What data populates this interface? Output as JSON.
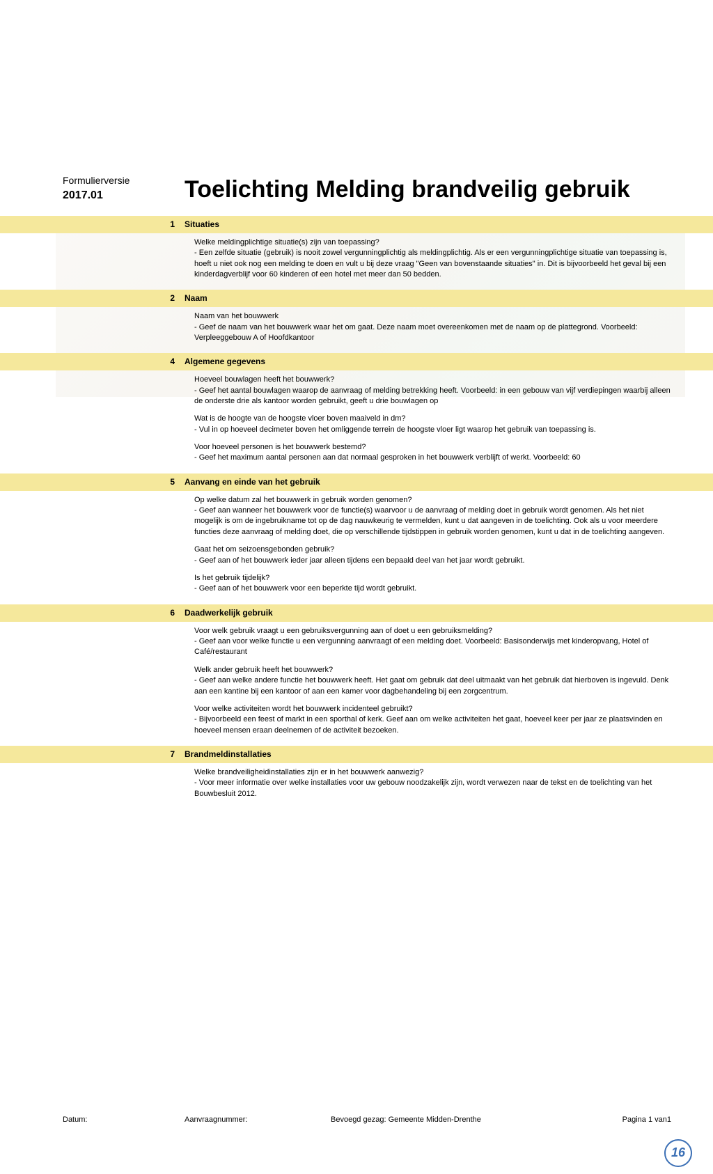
{
  "form_version_label": "Formulierversie",
  "form_version_num": "2017.01",
  "main_title": "Toelichting Melding brandveilig gebruik",
  "sections": [
    {
      "num": "1",
      "title": "Situaties",
      "blocks": [
        "Welke meldingplichtige situatie(s) zijn van toepassing?\n- Een zelfde situatie (gebruik) is nooit zowel vergunningplichtig als meldingplichtig. Als er een vergunningplichtige situatie van toepassing is, hoeft u niet ook nog een melding te doen en vult u bij deze vraag \"Geen van bovenstaande situaties\" in. Dit is bijvoorbeeld het geval bij een kinderdagverblijf voor 60 kinderen of een hotel met meer dan 50 bedden."
      ]
    },
    {
      "num": "2",
      "title": "Naam",
      "blocks": [
        "Naam van het bouwwerk\n- Geef de naam van het bouwwerk waar het om gaat. Deze naam moet overeenkomen met de naam op de plattegrond. Voorbeeld: Verpleeggebouw A of Hoofdkantoor"
      ]
    },
    {
      "num": "4",
      "title": "Algemene gegevens",
      "blocks": [
        "Hoeveel bouwlagen heeft het bouwwerk?\n- Geef het aantal bouwlagen waarop de aanvraag of melding betrekking heeft. Voorbeeld: in een gebouw van vijf verdiepingen waarbij alleen de onderste drie als kantoor worden gebruikt, geeft u drie bouwlagen op",
        "Wat is de hoogte van de hoogste vloer boven maaiveld in dm?\n- Vul in op hoeveel decimeter boven het omliggende terrein de hoogste vloer ligt waarop het gebruik van toepassing is.",
        "Voor hoeveel personen is het bouwwerk bestemd?\n- Geef het maximum aantal personen aan dat normaal gesproken in het bouwwerk verblijft of werkt. Voorbeeld: 60"
      ]
    },
    {
      "num": "5",
      "title": "Aanvang en einde van het gebruik",
      "blocks": [
        "Op welke datum zal het bouwwerk in gebruik worden genomen?\n- Geef aan wanneer het bouwwerk voor de functie(s) waarvoor u de aanvraag of melding doet in gebruik wordt genomen. Als het niet mogelijk is om de ingebruikname tot op de dag nauwkeurig te vermelden, kunt u dat aangeven in de toelichting. Ook als u voor meerdere functies deze aanvraag of melding doet, die op verschillende tijdstippen in gebruik worden genomen, kunt u dat in de toelichting aangeven.",
        "Gaat het om seizoensgebonden gebruik?\n- Geef aan of het bouwwerk ieder jaar alleen tijdens een bepaald deel van het jaar wordt gebruikt.",
        "Is het gebruik tijdelijk?\n- Geef aan of het bouwwerk voor een beperkte tijd wordt gebruikt."
      ]
    },
    {
      "num": "6",
      "title": "Daadwerkelijk gebruik",
      "blocks": [
        "Voor welk gebruik vraagt u een gebruiksvergunning aan of doet u een gebruiksmelding?\n- Geef aan voor welke functie u een vergunning aanvraagt of een melding doet. Voorbeeld: Basisonderwijs met kinderopvang, Hotel of Café/restaurant",
        "Welk ander gebruik heeft het bouwwerk?\n- Geef aan welke andere functie het bouwwerk heeft. Het gaat om gebruik dat deel uitmaakt van het gebruik dat hierboven is ingevuld. Denk aan een kantine bij een kantoor of aan een kamer voor dagbehandeling bij een zorgcentrum.",
        "Voor welke activiteiten wordt het bouwwerk incidenteel gebruikt?\n- Bijvoorbeeld een feest of markt in een sporthal of kerk. Geef aan om welke activiteiten het gaat, hoeveel keer per jaar ze plaatsvinden en hoeveel mensen eraan deelnemen of de activiteit bezoeken."
      ]
    },
    {
      "num": "7",
      "title": "Brandmeldinstallaties",
      "blocks": [
        "Welke brandveiligheidinstallaties zijn er in het bouwwerk aanwezig?\n- Voor meer informatie over welke installaties voor uw gebouw noodzakelijk zijn, wordt verwezen naar de tekst en de toelichting van het Bouwbesluit 2012."
      ]
    }
  ],
  "footer": {
    "datum": "Datum:",
    "aanvraag": "Aanvraagnummer:",
    "bevoegd": "Bevoegd gezag: Gemeente Midden-Drenthe",
    "pagina": "Pagina 1 van1"
  },
  "page_mark": "16",
  "colors": {
    "bar_bg": "#f5e89c",
    "text": "#000000",
    "mark": "#3b6fb5"
  }
}
